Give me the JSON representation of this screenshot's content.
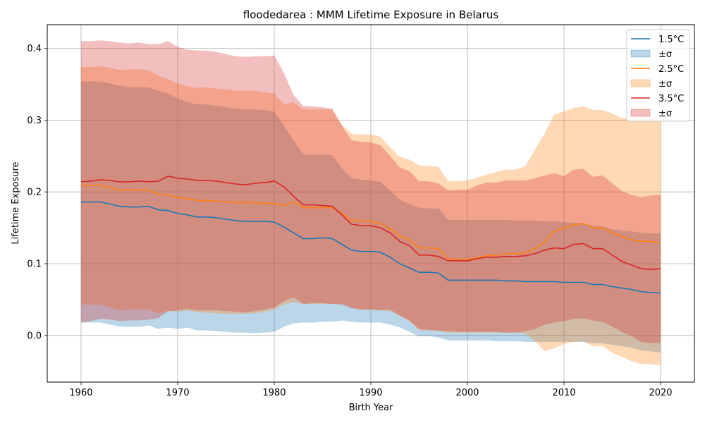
{
  "chart_data": {
    "type": "area",
    "title": "floodedarea : MMM Lifetime Exposure in Belarus",
    "xlabel": "Birth Year",
    "ylabel": "Lifetime Exposure",
    "xlim": [
      1956.5,
      2023.5
    ],
    "ylim": [
      -0.065,
      0.433
    ],
    "xticks": [
      1960,
      1970,
      1980,
      1990,
      2000,
      2010,
      2020
    ],
    "yticks": [
      0.0,
      0.1,
      0.2,
      0.3,
      0.4
    ],
    "ytick_labels": [
      "0.0",
      "0.1",
      "0.2",
      "0.3",
      "0.4"
    ],
    "grid": true,
    "legend_position": "top-right",
    "band_label": "±σ",
    "x": [
      1960,
      1961,
      1962,
      1963,
      1964,
      1965,
      1966,
      1967,
      1968,
      1969,
      1970,
      1971,
      1972,
      1973,
      1974,
      1975,
      1976,
      1977,
      1978,
      1979,
      1980,
      1981,
      1982,
      1983,
      1984,
      1985,
      1986,
      1987,
      1988,
      1989,
      1990,
      1991,
      1992,
      1993,
      1994,
      1995,
      1996,
      1997,
      1998,
      1999,
      2000,
      2001,
      2002,
      2003,
      2004,
      2005,
      2006,
      2007,
      2008,
      2009,
      2010,
      2011,
      2012,
      2013,
      2014,
      2015,
      2016,
      2017,
      2018,
      2019,
      2020
    ],
    "series": [
      {
        "name": "1.5°C",
        "color": "#1f77b4",
        "mean": [
          0.186,
          0.186,
          0.186,
          0.183,
          0.18,
          0.179,
          0.179,
          0.18,
          0.175,
          0.174,
          0.17,
          0.168,
          0.165,
          0.165,
          0.164,
          0.162,
          0.16,
          0.159,
          0.159,
          0.159,
          0.158,
          0.151,
          0.143,
          0.135,
          0.135,
          0.136,
          0.135,
          0.127,
          0.119,
          0.117,
          0.117,
          0.116,
          0.109,
          0.1,
          0.094,
          0.088,
          0.088,
          0.087,
          0.077,
          0.077,
          0.077,
          0.077,
          0.077,
          0.077,
          0.076,
          0.076,
          0.075,
          0.075,
          0.075,
          0.075,
          0.074,
          0.074,
          0.074,
          0.071,
          0.071,
          0.068,
          0.066,
          0.064,
          0.061,
          0.06,
          0.059
        ],
        "upper": [
          0.354,
          0.354,
          0.354,
          0.351,
          0.348,
          0.346,
          0.346,
          0.346,
          0.341,
          0.337,
          0.33,
          0.325,
          0.322,
          0.322,
          0.32,
          0.318,
          0.316,
          0.315,
          0.315,
          0.314,
          0.312,
          0.292,
          0.272,
          0.252,
          0.252,
          0.252,
          0.251,
          0.233,
          0.219,
          0.217,
          0.216,
          0.214,
          0.202,
          0.189,
          0.183,
          0.178,
          0.177,
          0.177,
          0.161,
          0.161,
          0.161,
          0.161,
          0.161,
          0.161,
          0.161,
          0.16,
          0.16,
          0.16,
          0.159,
          0.159,
          0.158,
          0.157,
          0.156,
          0.153,
          0.152,
          0.148,
          0.146,
          0.145,
          0.143,
          0.142,
          0.142
        ],
        "lower": [
          0.018,
          0.018,
          0.018,
          0.015,
          0.012,
          0.012,
          0.012,
          0.014,
          0.009,
          0.011,
          0.009,
          0.011,
          0.007,
          0.007,
          0.006,
          0.005,
          0.004,
          0.004,
          0.003,
          0.004,
          0.005,
          0.012,
          0.017,
          0.018,
          0.018,
          0.019,
          0.019,
          0.021,
          0.019,
          0.018,
          0.018,
          0.018,
          0.015,
          0.011,
          0.005,
          -0.001,
          -0.001,
          -0.003,
          -0.007,
          -0.007,
          -0.007,
          -0.007,
          -0.007,
          -0.008,
          -0.008,
          -0.008,
          -0.009,
          -0.009,
          -0.009,
          -0.009,
          -0.009,
          -0.009,
          -0.009,
          -0.011,
          -0.011,
          -0.013,
          -0.015,
          -0.017,
          -0.021,
          -0.022,
          -0.024
        ]
      },
      {
        "name": "2.5°C",
        "color": "#ff7f0e",
        "mean": [
          0.209,
          0.209,
          0.209,
          0.206,
          0.203,
          0.203,
          0.203,
          0.202,
          0.197,
          0.196,
          0.192,
          0.191,
          0.188,
          0.188,
          0.187,
          0.186,
          0.185,
          0.185,
          0.185,
          0.184,
          0.184,
          0.181,
          0.186,
          0.178,
          0.178,
          0.178,
          0.178,
          0.17,
          0.161,
          0.159,
          0.159,
          0.156,
          0.149,
          0.139,
          0.133,
          0.122,
          0.122,
          0.121,
          0.107,
          0.106,
          0.106,
          0.108,
          0.111,
          0.112,
          0.114,
          0.114,
          0.115,
          0.121,
          0.13,
          0.145,
          0.15,
          0.154,
          0.156,
          0.15,
          0.15,
          0.143,
          0.138,
          0.133,
          0.131,
          0.131,
          0.129
        ],
        "upper": [
          0.374,
          0.374,
          0.375,
          0.373,
          0.37,
          0.371,
          0.371,
          0.369,
          0.362,
          0.357,
          0.351,
          0.347,
          0.345,
          0.346,
          0.344,
          0.343,
          0.341,
          0.341,
          0.341,
          0.339,
          0.337,
          0.322,
          0.325,
          0.315,
          0.315,
          0.315,
          0.315,
          0.294,
          0.281,
          0.28,
          0.28,
          0.277,
          0.262,
          0.249,
          0.245,
          0.237,
          0.236,
          0.235,
          0.215,
          0.215,
          0.216,
          0.22,
          0.224,
          0.228,
          0.231,
          0.231,
          0.236,
          0.259,
          0.282,
          0.308,
          0.312,
          0.317,
          0.319,
          0.314,
          0.314,
          0.309,
          0.303,
          0.301,
          0.303,
          0.302,
          0.303
        ],
        "lower": [
          0.043,
          0.043,
          0.043,
          0.039,
          0.035,
          0.036,
          0.036,
          0.036,
          0.031,
          0.034,
          0.033,
          0.035,
          0.032,
          0.032,
          0.031,
          0.03,
          0.03,
          0.03,
          0.031,
          0.033,
          0.036,
          0.043,
          0.046,
          0.044,
          0.044,
          0.044,
          0.044,
          0.044,
          0.039,
          0.036,
          0.036,
          0.035,
          0.034,
          0.027,
          0.02,
          0.007,
          0.007,
          0.006,
          0.004,
          0.004,
          0.004,
          0.004,
          0.004,
          0.004,
          0.004,
          0.004,
          0.002,
          -0.008,
          -0.022,
          -0.018,
          -0.012,
          -0.009,
          -0.008,
          -0.015,
          -0.015,
          -0.024,
          -0.03,
          -0.036,
          -0.04,
          -0.04,
          -0.042
        ]
      },
      {
        "name": "3.5°C",
        "color": "#d62728",
        "mean": [
          0.214,
          0.215,
          0.217,
          0.216,
          0.214,
          0.214,
          0.215,
          0.214,
          0.215,
          0.222,
          0.219,
          0.218,
          0.216,
          0.216,
          0.215,
          0.213,
          0.211,
          0.21,
          0.212,
          0.213,
          0.215,
          0.207,
          0.194,
          0.182,
          0.182,
          0.181,
          0.18,
          0.168,
          0.155,
          0.153,
          0.153,
          0.15,
          0.143,
          0.131,
          0.125,
          0.112,
          0.112,
          0.11,
          0.104,
          0.104,
          0.104,
          0.107,
          0.109,
          0.109,
          0.11,
          0.11,
          0.111,
          0.114,
          0.119,
          0.122,
          0.121,
          0.127,
          0.128,
          0.121,
          0.121,
          0.112,
          0.103,
          0.098,
          0.093,
          0.092,
          0.093
        ],
        "upper": [
          0.41,
          0.41,
          0.411,
          0.41,
          0.408,
          0.407,
          0.408,
          0.406,
          0.406,
          0.41,
          0.402,
          0.398,
          0.397,
          0.397,
          0.395,
          0.392,
          0.389,
          0.388,
          0.389,
          0.389,
          0.39,
          0.366,
          0.335,
          0.32,
          0.319,
          0.318,
          0.316,
          0.292,
          0.272,
          0.27,
          0.269,
          0.265,
          0.25,
          0.234,
          0.229,
          0.215,
          0.215,
          0.212,
          0.202,
          0.203,
          0.203,
          0.209,
          0.213,
          0.213,
          0.216,
          0.216,
          0.216,
          0.219,
          0.223,
          0.226,
          0.222,
          0.231,
          0.232,
          0.221,
          0.223,
          0.212,
          0.201,
          0.196,
          0.193,
          0.195,
          0.196
        ],
        "lower": [
          0.018,
          0.02,
          0.023,
          0.022,
          0.02,
          0.021,
          0.021,
          0.022,
          0.024,
          0.034,
          0.035,
          0.037,
          0.035,
          0.035,
          0.035,
          0.034,
          0.033,
          0.032,
          0.034,
          0.036,
          0.039,
          0.048,
          0.053,
          0.044,
          0.045,
          0.045,
          0.044,
          0.043,
          0.038,
          0.036,
          0.036,
          0.035,
          0.036,
          0.028,
          0.021,
          0.009,
          0.008,
          0.007,
          0.006,
          0.005,
          0.005,
          0.005,
          0.005,
          0.005,
          0.004,
          0.004,
          0.006,
          0.009,
          0.015,
          0.018,
          0.02,
          0.023,
          0.024,
          0.021,
          0.019,
          0.012,
          0.005,
          -0.001,
          -0.009,
          -0.011,
          -0.01
        ]
      }
    ]
  }
}
